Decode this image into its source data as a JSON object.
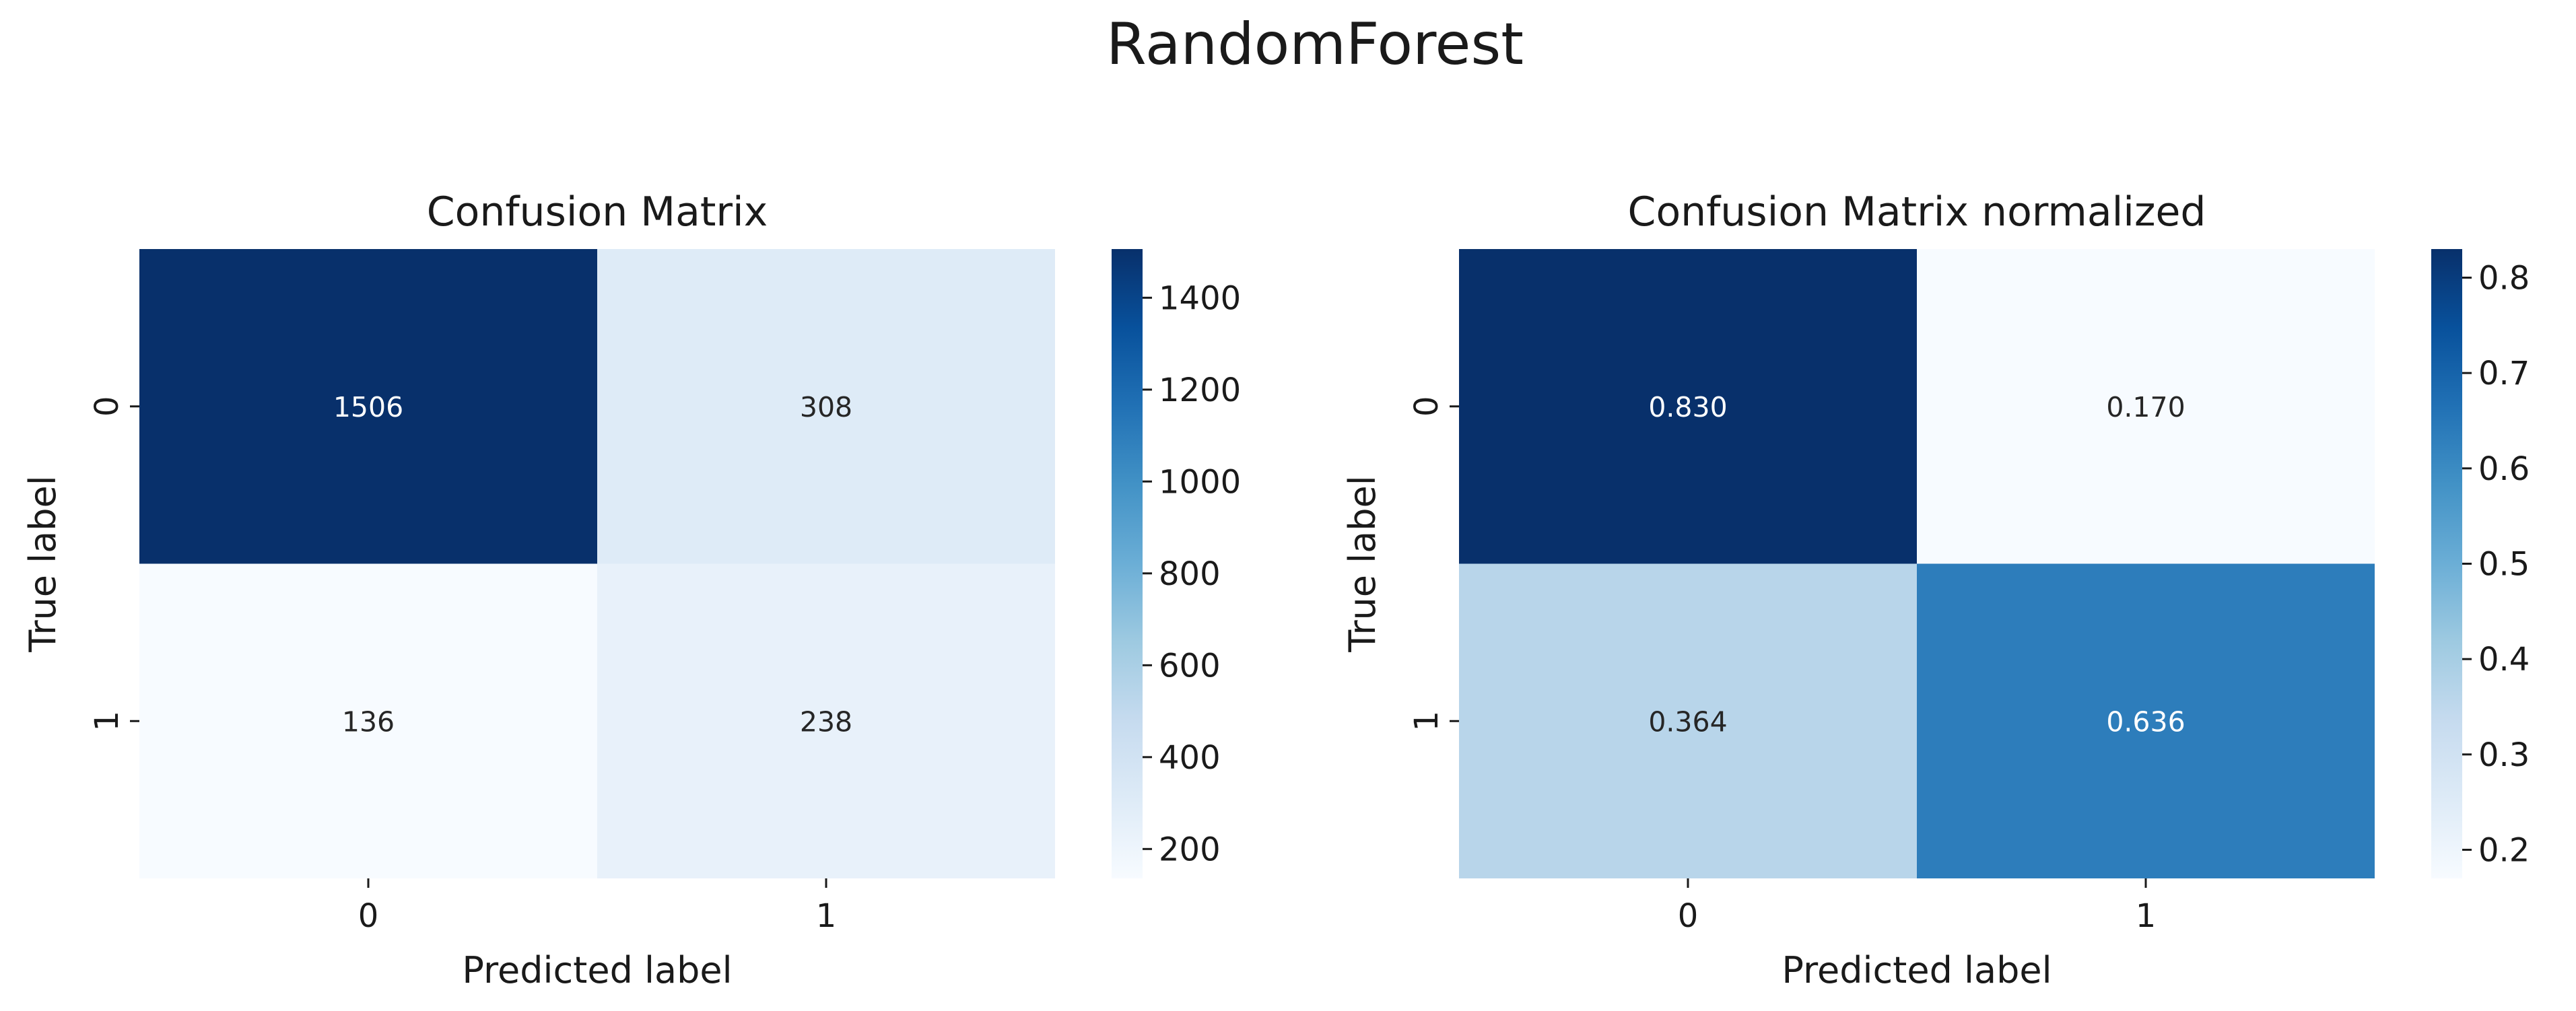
{
  "figure": {
    "suptitle": "RandomForest"
  },
  "chart_data": [
    {
      "type": "heatmap",
      "title": "Confusion Matrix",
      "xlabel": "Predicted label",
      "ylabel": "True label",
      "x_tick_labels": [
        "0",
        "1"
      ],
      "y_tick_labels": [
        "0",
        "1"
      ],
      "values": [
        [
          1506,
          308
        ],
        [
          136,
          238
        ]
      ],
      "cell_labels": [
        [
          "1506",
          "308"
        ],
        [
          "136",
          "238"
        ]
      ],
      "colormap": "Blues",
      "color_range": [
        136,
        1506
      ],
      "colorbar_ticks": [
        200,
        400,
        600,
        800,
        1000,
        1200,
        1400
      ],
      "colorbar_tick_labels": [
        "200",
        "400",
        "600",
        "800",
        "1000",
        "1200",
        "1400"
      ]
    },
    {
      "type": "heatmap",
      "title": "Confusion Matrix normalized",
      "xlabel": "Predicted label",
      "ylabel": "True label",
      "x_tick_labels": [
        "0",
        "1"
      ],
      "y_tick_labels": [
        "0",
        "1"
      ],
      "values": [
        [
          0.83,
          0.17
        ],
        [
          0.364,
          0.636
        ]
      ],
      "cell_labels": [
        [
          "0.830",
          "0.170"
        ],
        [
          "0.364",
          "0.636"
        ]
      ],
      "colormap": "Blues",
      "color_range": [
        0.17,
        0.83
      ],
      "colorbar_ticks": [
        0.2,
        0.3,
        0.4,
        0.5,
        0.6,
        0.7,
        0.8
      ],
      "colorbar_tick_labels": [
        "0.2",
        "0.3",
        "0.4",
        "0.5",
        "0.6",
        "0.7",
        "0.8"
      ]
    }
  ]
}
